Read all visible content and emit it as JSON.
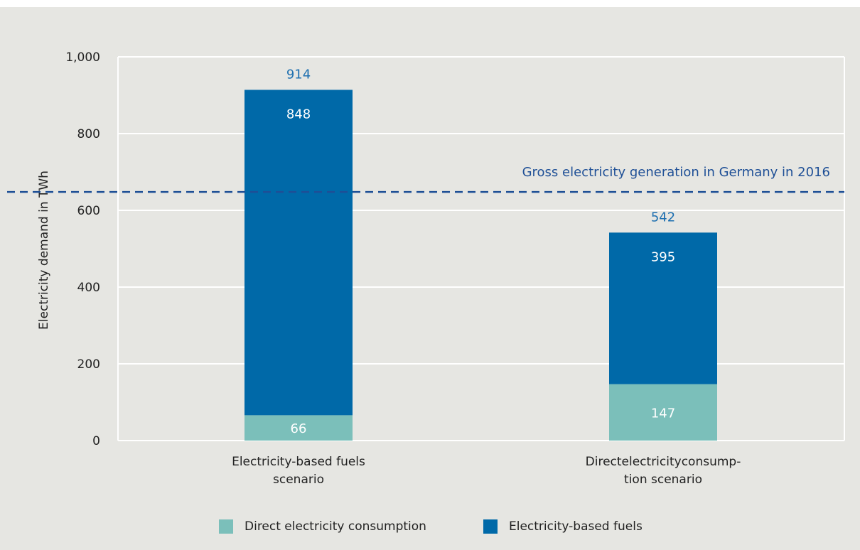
{
  "colors": {
    "background": "#e6e6e2",
    "direct": "#7bbfba",
    "fuels": "#0069a8",
    "total_label": "#1d6fb0",
    "reference_line": "#1e4f96",
    "gridline": "#ffffff",
    "axis_text": "#222222"
  },
  "chart_data": {
    "type": "bar",
    "stacked": true,
    "ylabel": "Electricity demand in TWh",
    "ylim": [
      0,
      1000
    ],
    "yticks": [
      0,
      200,
      400,
      600,
      800,
      1000
    ],
    "ytick_labels": [
      "0",
      "200",
      "400",
      "600",
      "800",
      "1,000"
    ],
    "grid": true,
    "categories": [
      [
        "Electricity-based fuels",
        "scenario"
      ],
      [
        "Directelectricityconsump-",
        "tion scenario"
      ]
    ],
    "series": [
      {
        "name": "Direct electricity consumption",
        "values": [
          66,
          147
        ],
        "value_labels": [
          "66",
          "147"
        ]
      },
      {
        "name": "Electricity-based fuels",
        "values": [
          848,
          395
        ],
        "value_labels": [
          "848",
          "395"
        ]
      }
    ],
    "totals": [
      914,
      542
    ],
    "total_labels": [
      "914",
      "542"
    ],
    "reference_line": {
      "value": 648,
      "label": "Gross electricity generation in Germany in 2016",
      "style": "dashed"
    },
    "legend_position": "bottom-center"
  }
}
